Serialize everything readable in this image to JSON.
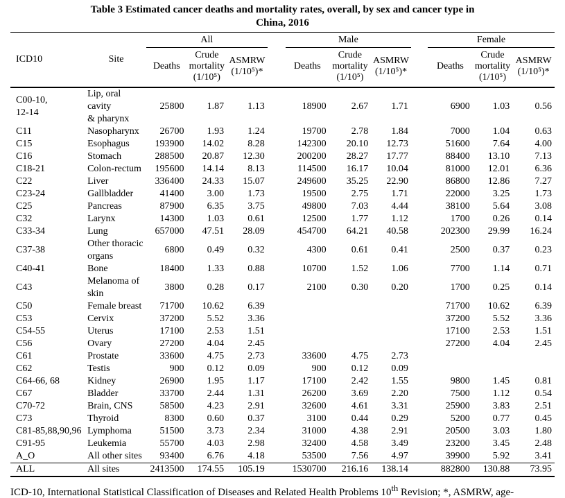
{
  "title": {
    "line1": "Table 3 Estimated cancer deaths and mortality rates, overall, by sex and cancer type in",
    "line2": "China, 2016"
  },
  "colors": {
    "text": "#000000",
    "background": "#ffffff",
    "rule": "#000000"
  },
  "table": {
    "col_icd10": "ICD10",
    "col_site": "Site",
    "groups": [
      "All",
      "Male",
      "Female"
    ],
    "sub_headers": [
      "Deaths",
      "Crude mortality (1/10⁵)",
      "ASMRW (1/10⁵)*"
    ],
    "rows": [
      {
        "icd10": "C00-10,\n12-14",
        "site": "Lip, oral cavity\n& pharynx",
        "values": [
          "25800",
          "1.87",
          "1.13",
          "18900",
          "2.67",
          "1.71",
          "6900",
          "1.03",
          "0.56"
        ]
      },
      {
        "icd10": "C11",
        "site": "Nasopharynx",
        "values": [
          "26700",
          "1.93",
          "1.24",
          "19700",
          "2.78",
          "1.84",
          "7000",
          "1.04",
          "0.63"
        ]
      },
      {
        "icd10": "C15",
        "site": "Esophagus",
        "values": [
          "193900",
          "14.02",
          "8.28",
          "142300",
          "20.10",
          "12.73",
          "51600",
          "7.64",
          "4.00"
        ]
      },
      {
        "icd10": "C16",
        "site": "Stomach",
        "values": [
          "288500",
          "20.87",
          "12.30",
          "200200",
          "28.27",
          "17.77",
          "88400",
          "13.10",
          "7.13"
        ]
      },
      {
        "icd10": "C18-21",
        "site": "Colon-rectum",
        "values": [
          "195600",
          "14.14",
          "8.13",
          "114500",
          "16.17",
          "10.04",
          "81000",
          "12.01",
          "6.36"
        ]
      },
      {
        "icd10": "C22",
        "site": "Liver",
        "values": [
          "336400",
          "24.33",
          "15.07",
          "249600",
          "35.25",
          "22.90",
          "86800",
          "12.86",
          "7.27"
        ]
      },
      {
        "icd10": "C23-24",
        "site": "Gallbladder",
        "values": [
          "41400",
          "3.00",
          "1.73",
          "19500",
          "2.75",
          "1.71",
          "22000",
          "3.25",
          "1.73"
        ]
      },
      {
        "icd10": "C25",
        "site": "Pancreas",
        "values": [
          "87900",
          "6.35",
          "3.75",
          "49800",
          "7.03",
          "4.44",
          "38100",
          "5.64",
          "3.08"
        ]
      },
      {
        "icd10": "C32",
        "site": "Larynx",
        "values": [
          "14300",
          "1.03",
          "0.61",
          "12500",
          "1.77",
          "1.12",
          "1700",
          "0.26",
          "0.14"
        ]
      },
      {
        "icd10": "C33-34",
        "site": "Lung",
        "values": [
          "657000",
          "47.51",
          "28.09",
          "454700",
          "64.21",
          "40.58",
          "202300",
          "29.99",
          "16.24"
        ]
      },
      {
        "icd10": "C37-38",
        "site": "Other thoracic\norgans",
        "values": [
          "6800",
          "0.49",
          "0.32",
          "4300",
          "0.61",
          "0.41",
          "2500",
          "0.37",
          "0.23"
        ]
      },
      {
        "icd10": "C40-41",
        "site": "Bone",
        "values": [
          "18400",
          "1.33",
          "0.88",
          "10700",
          "1.52",
          "1.06",
          "7700",
          "1.14",
          "0.71"
        ]
      },
      {
        "icd10": "C43",
        "site": "Melanoma of\nskin",
        "values": [
          "3800",
          "0.28",
          "0.17",
          "2100",
          "0.30",
          "0.20",
          "1700",
          "0.25",
          "0.14"
        ]
      },
      {
        "icd10": "C50",
        "site": "Female breast",
        "values": [
          "71700",
          "10.62",
          "6.39",
          "",
          "",
          "",
          "71700",
          "10.62",
          "6.39"
        ]
      },
      {
        "icd10": "C53",
        "site": "Cervix",
        "values": [
          "37200",
          "5.52",
          "3.36",
          "",
          "",
          "",
          "37200",
          "5.52",
          "3.36"
        ]
      },
      {
        "icd10": "C54-55",
        "site": "Uterus",
        "values": [
          "17100",
          "2.53",
          "1.51",
          "",
          "",
          "",
          "17100",
          "2.53",
          "1.51"
        ]
      },
      {
        "icd10": "C56",
        "site": "Ovary",
        "values": [
          "27200",
          "4.04",
          "2.45",
          "",
          "",
          "",
          "27200",
          "4.04",
          "2.45"
        ]
      },
      {
        "icd10": "C61",
        "site": "Prostate",
        "values": [
          "33600",
          "4.75",
          "2.73",
          "33600",
          "4.75",
          "2.73",
          "",
          "",
          ""
        ]
      },
      {
        "icd10": "C62",
        "site": "Testis",
        "values": [
          "900",
          "0.12",
          "0.09",
          "900",
          "0.12",
          "0.09",
          "",
          "",
          ""
        ]
      },
      {
        "icd10": "C64-66, 68",
        "site": "Kidney",
        "values": [
          "26900",
          "1.95",
          "1.17",
          "17100",
          "2.42",
          "1.55",
          "9800",
          "1.45",
          "0.81"
        ]
      },
      {
        "icd10": "C67",
        "site": "Bladder",
        "values": [
          "33700",
          "2.44",
          "1.31",
          "26200",
          "3.69",
          "2.20",
          "7500",
          "1.12",
          "0.54"
        ]
      },
      {
        "icd10": "C70-72",
        "site": "Brain, CNS",
        "values": [
          "58500",
          "4.23",
          "2.91",
          "32600",
          "4.61",
          "3.31",
          "25900",
          "3.83",
          "2.51"
        ]
      },
      {
        "icd10": "C73",
        "site": "Thyroid",
        "values": [
          "8300",
          "0.60",
          "0.37",
          "3100",
          "0.44",
          "0.29",
          "5200",
          "0.77",
          "0.45"
        ]
      },
      {
        "icd10": "C81-85,88,90,96",
        "site": "Lymphoma",
        "values": [
          "51500",
          "3.73",
          "2.34",
          "31000",
          "4.38",
          "2.91",
          "20500",
          "3.03",
          "1.80"
        ]
      },
      {
        "icd10": "C91-95",
        "site": "Leukemia",
        "values": [
          "55700",
          "4.03",
          "2.98",
          "32400",
          "4.58",
          "3.49",
          "23200",
          "3.45",
          "2.48"
        ]
      },
      {
        "icd10": "A_O",
        "site": "All other sites",
        "values": [
          "93400",
          "6.76",
          "4.18",
          "53500",
          "7.56",
          "4.97",
          "39900",
          "5.92",
          "3.41"
        ]
      },
      {
        "icd10": "ALL",
        "site": "All sites",
        "values": [
          "2413500",
          "174.55",
          "105.19",
          "1530700",
          "216.16",
          "138.14",
          "882800",
          "130.88",
          "73.95"
        ]
      }
    ]
  },
  "footnote": {
    "part1": "ICD-10, International Statistical Classification of Diseases and Related Health Problems 10",
    "sup": "th",
    "part2": " Revision; *, ASMRW, age-standardized mortality rate by world standard population (Segi’s population); CNS, central nervous system."
  }
}
